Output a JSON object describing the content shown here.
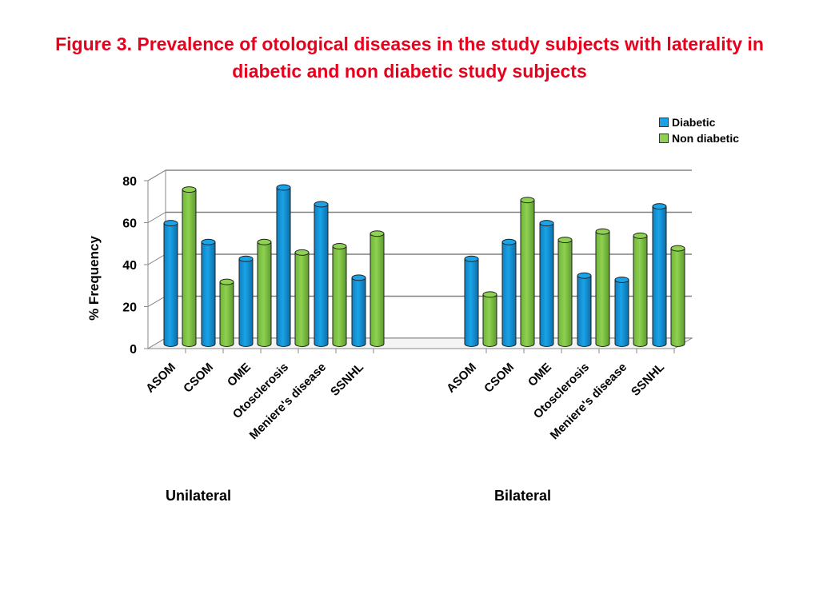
{
  "title": {
    "line1": "Figure 3. Prevalence of otological diseases in the study subjects with laterality in",
    "line2": "diabetic and non diabetic study subjects"
  },
  "colors": {
    "diabetic": "#1aa3e8",
    "non_diabetic": "#8fd150",
    "title": "#e8001c"
  },
  "chart_data": {
    "type": "bar",
    "title": "Figure 3. Prevalence of otological diseases in the study subjects with laterality in diabetic and non diabetic study subjects",
    "ylabel": "% Frequency",
    "xlabel": "",
    "ylim": [
      0,
      80
    ],
    "yticks": [
      0,
      20,
      40,
      60,
      80
    ],
    "grid": true,
    "legend_position": "top-right",
    "groups": [
      {
        "label": "Unilateral",
        "categories": [
          "ASOM",
          "CSOM",
          "OME",
          "Otosclerosis",
          "Meniere's disease",
          "SSNHL"
        ],
        "series": [
          {
            "name": "Diabetic",
            "values": [
              59,
              50,
              42,
              76,
              68,
              33
            ]
          },
          {
            "name": "Non diabetic",
            "values": [
              75,
              31,
              50,
              45,
              48,
              54
            ]
          }
        ]
      },
      {
        "label": "Bilateral",
        "categories": [
          "ASOM",
          "CSOM",
          "OME",
          "Otosclerosis",
          "Meniere's disease",
          "SSNHL"
        ],
        "series": [
          {
            "name": "Diabetic",
            "values": [
              42,
              50,
              59,
              34,
              32,
              67
            ]
          },
          {
            "name": "Non diabetic",
            "values": [
              25,
              70,
              51,
              55,
              53,
              47
            ]
          }
        ]
      }
    ]
  }
}
